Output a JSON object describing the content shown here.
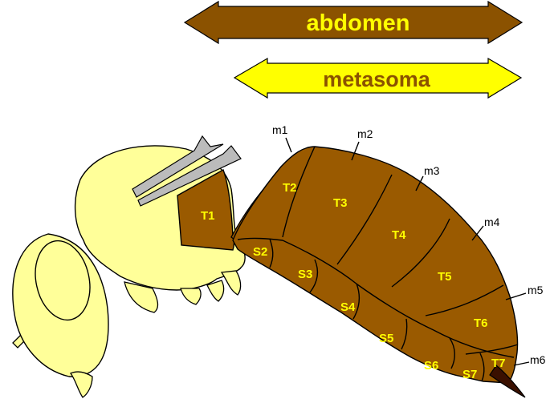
{
  "arrows": {
    "abdomen": {
      "label": "abdomen",
      "fill": "#8B5200",
      "text_color": "#FFFF00"
    },
    "metasoma": {
      "label": "metasoma",
      "fill": "#FFFF00",
      "text_color": "#8B5200"
    }
  },
  "tergites": [
    "T1",
    "T2",
    "T3",
    "T4",
    "T5",
    "T6",
    "T7"
  ],
  "sternites": [
    "S2",
    "S3",
    "S4",
    "S5",
    "S6",
    "S7"
  ],
  "membranes": [
    "m1",
    "m2",
    "m3",
    "m4",
    "m5",
    "m6"
  ],
  "colors": {
    "thorax": "#FFFF99",
    "abdomen": "#9A5A00",
    "wing": "#BBBBBB",
    "sting": "#3A1000",
    "segment_text": "#FFFF00"
  }
}
